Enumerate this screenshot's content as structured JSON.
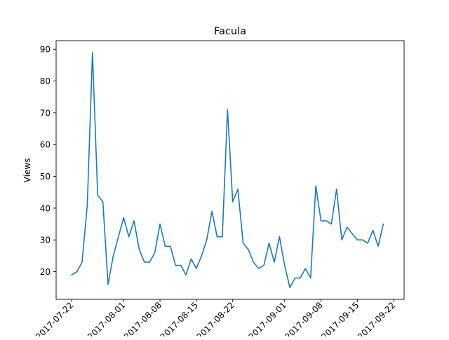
{
  "chart_data": {
    "type": "line",
    "title": "Facula",
    "xlabel": "",
    "ylabel": "Views",
    "x_ticks": [
      "2017-07-22",
      "2017-08-01",
      "2017-08-08",
      "2017-08-15",
      "2017-08-22",
      "2017-09-01",
      "2017-09-08",
      "2017-09-15",
      "2017-09-22"
    ],
    "y_ticks": [
      20,
      30,
      40,
      50,
      60,
      70,
      80,
      90
    ],
    "x_range": [
      "2017-07-19",
      "2017-09-24"
    ],
    "ylim": [
      11.3,
      92.7
    ],
    "grid": false,
    "legend": "none",
    "series": [
      {
        "color": "#1f77b4",
        "x": [
          "2017-07-22",
          "2017-07-23",
          "2017-07-24",
          "2017-07-25",
          "2017-07-26",
          "2017-07-27",
          "2017-07-28",
          "2017-07-29",
          "2017-07-30",
          "2017-07-31",
          "2017-08-01",
          "2017-08-02",
          "2017-08-03",
          "2017-08-04",
          "2017-08-05",
          "2017-08-06",
          "2017-08-07",
          "2017-08-08",
          "2017-08-09",
          "2017-08-10",
          "2017-08-11",
          "2017-08-12",
          "2017-08-13",
          "2017-08-14",
          "2017-08-15",
          "2017-08-16",
          "2017-08-17",
          "2017-08-18",
          "2017-08-19",
          "2017-08-20",
          "2017-08-21",
          "2017-08-22",
          "2017-08-23",
          "2017-08-24",
          "2017-08-25",
          "2017-08-26",
          "2017-08-27",
          "2017-08-28",
          "2017-08-29",
          "2017-08-30",
          "2017-08-31",
          "2017-09-01",
          "2017-09-02",
          "2017-09-03",
          "2017-09-04",
          "2017-09-05",
          "2017-09-06",
          "2017-09-07",
          "2017-09-08",
          "2017-09-09",
          "2017-09-10",
          "2017-09-11",
          "2017-09-12",
          "2017-09-13",
          "2017-09-14",
          "2017-09-15",
          "2017-09-16",
          "2017-09-17",
          "2017-09-18",
          "2017-09-19",
          "2017-09-20"
        ],
        "values": [
          19,
          20,
          23,
          41,
          89,
          44,
          42,
          16,
          25,
          31,
          37,
          31,
          36,
          27,
          23,
          23,
          26,
          35,
          28,
          28,
          22,
          22,
          19,
          24,
          21,
          25,
          30,
          39,
          31,
          31,
          71,
          42,
          46,
          29,
          27,
          23,
          21,
          22,
          29,
          23,
          31,
          22,
          15,
          18,
          18,
          21,
          18,
          47,
          36,
          36,
          35,
          46,
          30,
          34,
          32,
          30,
          30,
          29,
          33,
          28,
          35
        ]
      }
    ]
  }
}
